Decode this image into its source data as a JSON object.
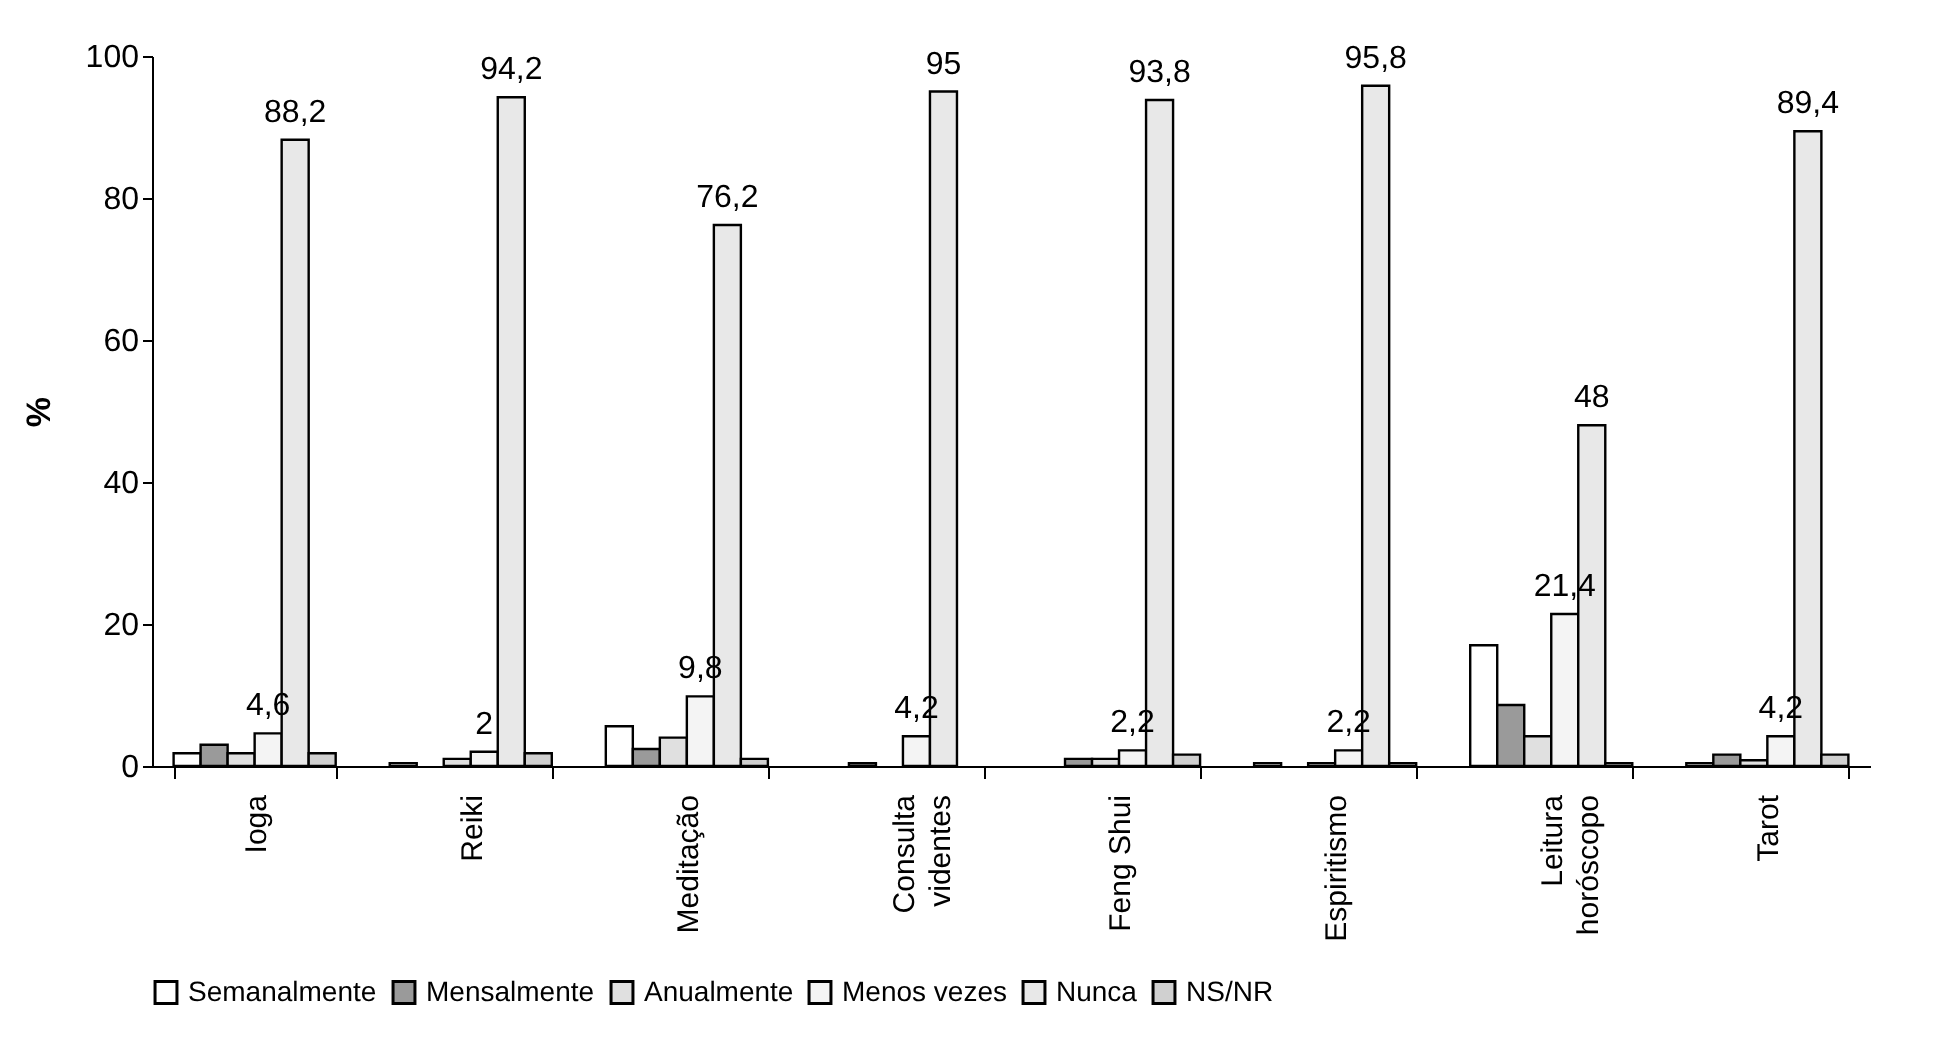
{
  "chart_data": {
    "type": "bar",
    "ylabel": "%",
    "categories": [
      "Ioga",
      "Reiki",
      "Meditação",
      "Consulta videntes",
      "Feng Shui",
      "Espiritismo",
      "Leitura horóscopo",
      "Tarot"
    ],
    "ylim": [
      0,
      100
    ],
    "yticks": [
      0,
      20,
      40,
      60,
      80,
      100
    ],
    "grid": false,
    "legend": "bottom",
    "series": [
      {
        "name": "Semanalmente",
        "color": "#ffffff",
        "values": [
          1.8,
          0.4,
          5.6,
          0,
          0,
          0.4,
          17,
          0.4
        ]
      },
      {
        "name": "Mensalmente",
        "color": "#9a9a9a",
        "values": [
          3,
          0,
          2.4,
          0.4,
          1,
          0,
          8.6,
          1.6
        ]
      },
      {
        "name": "Anualmente",
        "color": "#e0e0e0",
        "values": [
          1.8,
          1,
          4,
          0,
          1,
          0.4,
          4.2,
          0.8
        ]
      },
      {
        "name": "Menos vezes",
        "color": "#f4f4f4",
        "values": [
          4.6,
          2,
          9.8,
          4.2,
          2.2,
          2.2,
          21.4,
          4.2
        ],
        "value_labels": [
          "4,6",
          "2",
          "9,8",
          "4,2",
          "2,2",
          "2,2",
          "21,4",
          "4,2"
        ]
      },
      {
        "name": "Nunca",
        "color": "#e8e8e8",
        "values": [
          88.2,
          94.2,
          76.2,
          95,
          93.8,
          95.8,
          48,
          89.4
        ],
        "value_labels": [
          "88,2",
          "94,2",
          "76,2",
          "95",
          "93,8",
          "95,8",
          "48",
          "89,4"
        ]
      },
      {
        "name": "NS/NR",
        "color": "#d0d0d0",
        "values": [
          1.8,
          1.8,
          1,
          0,
          1.6,
          0.4,
          0.4,
          1.6
        ]
      }
    ]
  }
}
